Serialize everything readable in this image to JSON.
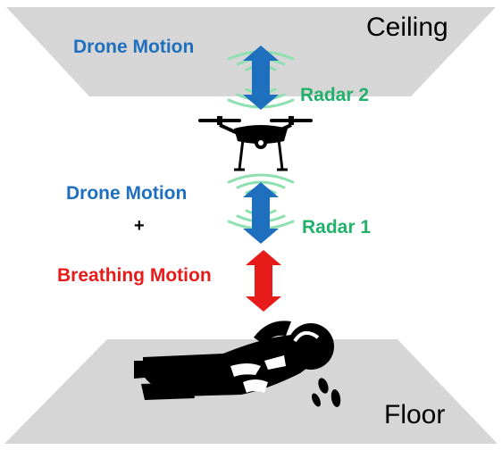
{
  "labels": {
    "ceiling": "Ceiling",
    "floor": "Floor",
    "drone_motion_top": "Drone Motion",
    "radar_2": "Radar 2",
    "drone_motion_mid": "Drone Motion",
    "plus": "+",
    "radar_1": "Radar 1",
    "breathing_motion": "Breathing Motion"
  },
  "colors": {
    "drone_motion": "#1f6fbf",
    "radar": "#22b06a",
    "breathing_motion": "#e81b1b",
    "plane_fill": "#d6d6d6",
    "silhouette": "#000000"
  },
  "icons": {
    "drone": "quadcopter-drone-icon",
    "person": "lying-person-icon",
    "radar_waves": "radar-wave-icon",
    "motion_arrows": "double-headed-arrow-icon"
  }
}
